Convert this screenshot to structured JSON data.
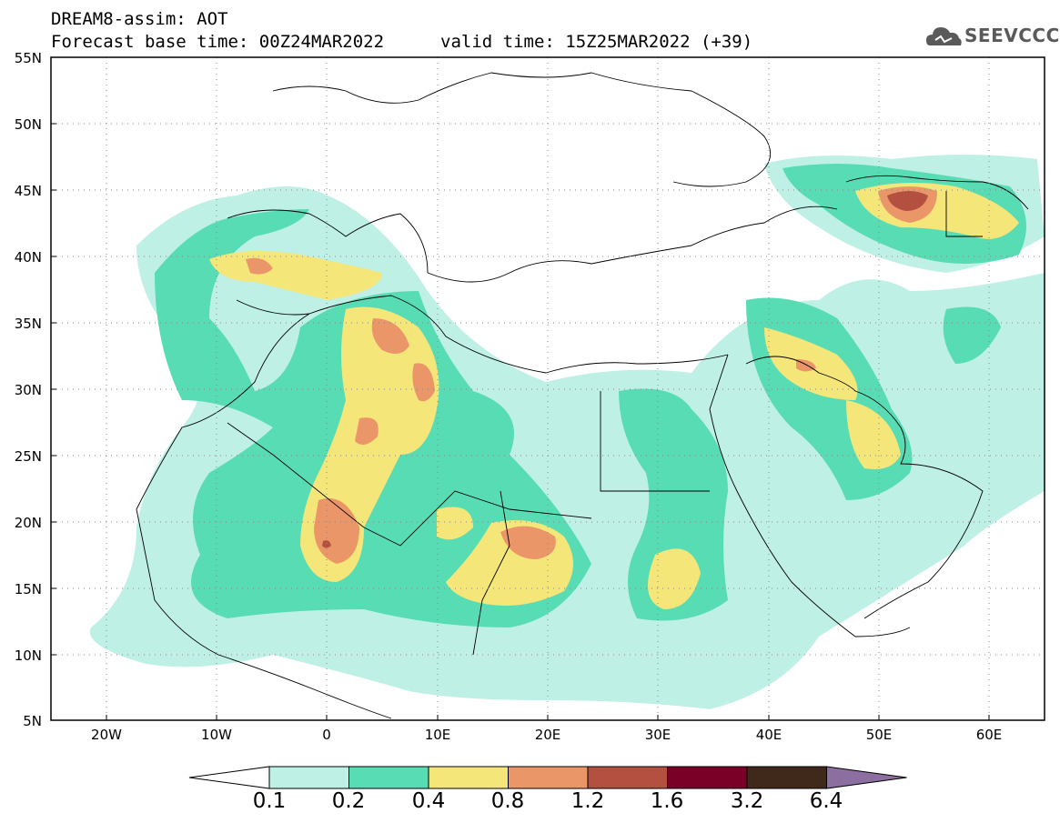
{
  "title": {
    "line1": "DREAM8-assim: AOT",
    "line2": "Forecast base time: 00Z24MAR2022",
    "valid": "valid time: 15Z25MAR2022 (+39)"
  },
  "logo": {
    "text": "SEEVCCC",
    "icon": "cloud-logo-icon"
  },
  "map": {
    "variable": "AOT",
    "lat_labels": [
      "55N",
      "50N",
      "45N",
      "40N",
      "35N",
      "30N",
      "25N",
      "20N",
      "15N",
      "10N",
      "5N"
    ],
    "lon_labels": [
      "20W",
      "10W",
      "0",
      "10E",
      "20E",
      "30E",
      "40E",
      "50E",
      "60E"
    ],
    "lon_range": [
      -25,
      65
    ],
    "lat_range": [
      5,
      55
    ],
    "grid": "dotted"
  },
  "colorbar": {
    "levels": [
      "0.1",
      "0.2",
      "0.4",
      "0.8",
      "1.2",
      "1.6",
      "3.2",
      "6.4"
    ],
    "colors": [
      "#ffffff",
      "#bff0e6",
      "#58dcb4",
      "#f5e67a",
      "#eb9668",
      "#b45040",
      "#7a0028",
      "#40281a",
      "#8c6ea0"
    ]
  }
}
